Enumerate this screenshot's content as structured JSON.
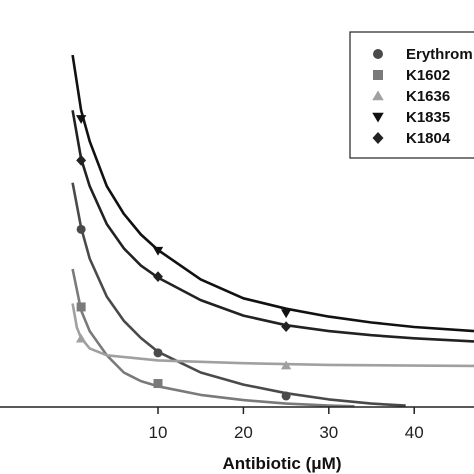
{
  "chart_data": {
    "type": "scatter",
    "xlabel": "Antibiotic (μM)",
    "ylabel": "",
    "xlim": [
      -8.5,
      47
    ],
    "ylim": [
      0,
      1.0
    ],
    "x_ticks": [
      10,
      20,
      30,
      40
    ],
    "x_tick_labels": [
      "10",
      "20",
      "30",
      "40"
    ],
    "grid": false,
    "legend_position": "top-right",
    "series": [
      {
        "name": "Erythrom",
        "marker": "circle",
        "color": "#4a4a4a",
        "points": [
          [
            1,
            0.515
          ],
          [
            10,
            0.157
          ],
          [
            25,
            0.032
          ]
        ],
        "curve": [
          [
            0,
            0.65
          ],
          [
            1,
            0.52
          ],
          [
            2,
            0.43
          ],
          [
            4,
            0.32
          ],
          [
            6,
            0.25
          ],
          [
            8,
            0.2
          ],
          [
            10,
            0.16
          ],
          [
            15,
            0.1
          ],
          [
            20,
            0.065
          ],
          [
            25,
            0.04
          ],
          [
            30,
            0.022
          ],
          [
            35,
            0.01
          ],
          [
            39,
            0.004
          ]
        ]
      },
      {
        "name": "K1602",
        "marker": "square",
        "color": "#7a7a7a",
        "points": [
          [
            1,
            0.29
          ],
          [
            10,
            0.068
          ]
        ],
        "curve": [
          [
            0,
            0.4
          ],
          [
            1,
            0.28
          ],
          [
            2,
            0.22
          ],
          [
            4,
            0.15
          ],
          [
            6,
            0.1
          ],
          [
            8,
            0.075
          ],
          [
            10,
            0.06
          ],
          [
            15,
            0.035
          ],
          [
            20,
            0.02
          ],
          [
            25,
            0.01
          ],
          [
            30,
            0.004
          ],
          [
            33,
            0.002
          ]
        ]
      },
      {
        "name": "K1636",
        "marker": "triangle-up",
        "color": "#a0a0a0",
        "points": [
          [
            1,
            0.198
          ],
          [
            25,
            0.12
          ]
        ],
        "curve": [
          [
            0,
            0.3
          ],
          [
            0.5,
            0.23
          ],
          [
            1,
            0.2
          ],
          [
            2,
            0.17
          ],
          [
            4,
            0.15
          ],
          [
            10,
            0.135
          ],
          [
            20,
            0.127
          ],
          [
            30,
            0.122
          ],
          [
            40,
            0.12
          ],
          [
            47,
            0.119
          ]
        ]
      },
      {
        "name": "K1835",
        "marker": "triangle-down",
        "color": "#111111",
        "points": [
          [
            1,
            0.835
          ],
          [
            10,
            0.453
          ],
          [
            25,
            0.272
          ]
        ],
        "curve": [
          [
            0,
            1.02
          ],
          [
            1,
            0.86
          ],
          [
            2,
            0.77
          ],
          [
            4,
            0.64
          ],
          [
            6,
            0.56
          ],
          [
            8,
            0.5
          ],
          [
            10,
            0.455
          ],
          [
            15,
            0.37
          ],
          [
            20,
            0.315
          ],
          [
            25,
            0.285
          ],
          [
            30,
            0.262
          ],
          [
            35,
            0.245
          ],
          [
            40,
            0.232
          ],
          [
            47,
            0.22
          ]
        ]
      },
      {
        "name": "K1804",
        "marker": "diamond",
        "color": "#222222",
        "points": [
          [
            1,
            0.715
          ],
          [
            10,
            0.378
          ],
          [
            25,
            0.233
          ]
        ],
        "curve": [
          [
            0,
            0.86
          ],
          [
            1,
            0.72
          ],
          [
            2,
            0.64
          ],
          [
            4,
            0.53
          ],
          [
            6,
            0.46
          ],
          [
            8,
            0.41
          ],
          [
            10,
            0.375
          ],
          [
            15,
            0.31
          ],
          [
            20,
            0.265
          ],
          [
            25,
            0.237
          ],
          [
            30,
            0.22
          ],
          [
            35,
            0.208
          ],
          [
            40,
            0.199
          ],
          [
            47,
            0.19
          ]
        ]
      }
    ]
  }
}
